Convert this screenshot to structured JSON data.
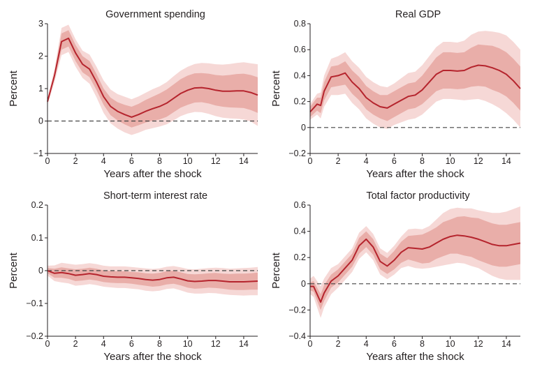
{
  "colors": {
    "line": "#b5242d",
    "inner_band": "#e9aea9",
    "outer_band": "#f6d8d6",
    "axis": "#231f20",
    "zero_line": "#444444"
  },
  "chart_data": [
    {
      "type": "line",
      "title": "Government spending",
      "xlabel": "Years after the shock",
      "ylabel": "Percent",
      "xlim": [
        0,
        15
      ],
      "ylim": [
        -1,
        3
      ],
      "xticks": [
        0,
        2,
        4,
        6,
        8,
        10,
        12,
        14
      ],
      "yticks": [
        -1,
        0,
        1,
        2,
        3
      ],
      "ytick_labels": [
        "−1",
        "0",
        "1",
        "2",
        "3"
      ],
      "x": [
        0,
        0.5,
        1,
        1.5,
        2,
        2.5,
        3,
        3.5,
        4,
        4.5,
        5,
        5.5,
        6,
        6.5,
        7,
        7.5,
        8,
        8.5,
        9,
        9.5,
        10,
        10.5,
        11,
        11.5,
        12,
        12.5,
        13,
        13.5,
        14,
        14.5,
        15
      ],
      "mean": [
        0.6,
        1.4,
        2.45,
        2.55,
        2.1,
        1.75,
        1.6,
        1.2,
        0.75,
        0.45,
        0.3,
        0.2,
        0.12,
        0.2,
        0.3,
        0.38,
        0.45,
        0.55,
        0.7,
        0.85,
        0.95,
        1.02,
        1.03,
        1.0,
        0.95,
        0.92,
        0.92,
        0.93,
        0.93,
        0.88,
        0.8
      ],
      "inner_halfwidth": [
        0.05,
        0.1,
        0.25,
        0.25,
        0.25,
        0.25,
        0.25,
        0.25,
        0.25,
        0.27,
        0.28,
        0.3,
        0.32,
        0.33,
        0.35,
        0.37,
        0.4,
        0.42,
        0.43,
        0.44,
        0.45,
        0.45,
        0.45,
        0.46,
        0.47,
        0.48,
        0.5,
        0.52,
        0.53,
        0.54,
        0.55
      ],
      "outer_halfwidth": [
        0.1,
        0.2,
        0.42,
        0.42,
        0.42,
        0.42,
        0.45,
        0.47,
        0.5,
        0.52,
        0.53,
        0.55,
        0.55,
        0.56,
        0.57,
        0.6,
        0.62,
        0.65,
        0.68,
        0.7,
        0.72,
        0.74,
        0.76,
        0.78,
        0.8,
        0.82,
        0.84,
        0.86,
        0.88,
        0.9,
        0.95
      ]
    },
    {
      "type": "line",
      "title": "Real GDP",
      "xlabel": "Years after the shock",
      "ylabel": "Percent",
      "xlim": [
        0,
        15
      ],
      "ylim": [
        -0.2,
        0.8
      ],
      "xticks": [
        0,
        2,
        4,
        6,
        8,
        10,
        12,
        14
      ],
      "yticks": [
        -0.2,
        0,
        0.2,
        0.4,
        0.6,
        0.8
      ],
      "ytick_labels": [
        "−0.2",
        "0",
        "0.2",
        "0.4",
        "0.6",
        "0.8"
      ],
      "x": [
        0,
        0.5,
        0.75,
        1,
        1.5,
        2,
        2.5,
        3,
        3.5,
        4,
        4.5,
        5,
        5.5,
        6,
        6.5,
        7,
        7.5,
        8,
        8.5,
        9,
        9.5,
        10,
        10.5,
        11,
        11.5,
        12,
        12.5,
        13,
        13.5,
        14,
        14.5,
        15
      ],
      "mean": [
        0.12,
        0.18,
        0.17,
        0.28,
        0.39,
        0.4,
        0.42,
        0.35,
        0.3,
        0.23,
        0.19,
        0.16,
        0.15,
        0.18,
        0.21,
        0.24,
        0.25,
        0.29,
        0.35,
        0.41,
        0.44,
        0.44,
        0.435,
        0.44,
        0.465,
        0.48,
        0.475,
        0.46,
        0.44,
        0.41,
        0.36,
        0.3
      ],
      "inner_halfwidth": [
        0.04,
        0.05,
        0.06,
        0.07,
        0.08,
        0.08,
        0.09,
        0.09,
        0.09,
        0.09,
        0.09,
        0.09,
        0.1,
        0.1,
        0.1,
        0.1,
        0.1,
        0.11,
        0.12,
        0.13,
        0.14,
        0.14,
        0.14,
        0.14,
        0.15,
        0.16,
        0.16,
        0.17,
        0.17,
        0.17,
        0.17,
        0.17
      ],
      "outer_halfwidth": [
        0.06,
        0.08,
        0.1,
        0.12,
        0.14,
        0.15,
        0.16,
        0.16,
        0.16,
        0.16,
        0.16,
        0.16,
        0.16,
        0.16,
        0.17,
        0.18,
        0.18,
        0.19,
        0.2,
        0.21,
        0.22,
        0.22,
        0.22,
        0.23,
        0.25,
        0.26,
        0.27,
        0.28,
        0.29,
        0.3,
        0.3,
        0.3
      ]
    },
    {
      "type": "line",
      "title": "Short-term interest rate",
      "xlabel": "Years after the shock",
      "ylabel": "Percent",
      "xlim": [
        0,
        15
      ],
      "ylim": [
        -0.2,
        0.2
      ],
      "xticks": [
        0,
        2,
        4,
        6,
        8,
        10,
        12,
        14
      ],
      "yticks": [
        -0.2,
        -0.1,
        0,
        0.1,
        0.2
      ],
      "ytick_labels": [
        "−0.2",
        "−0.1",
        "0",
        "0.1",
        "0.2"
      ],
      "x": [
        0,
        0.5,
        1,
        1.5,
        2,
        2.5,
        3,
        3.5,
        4,
        4.5,
        5,
        5.5,
        6,
        6.5,
        7,
        7.5,
        8,
        8.5,
        9,
        9.5,
        10,
        10.5,
        11,
        11.5,
        12,
        12.5,
        13,
        13.5,
        14,
        14.5,
        15
      ],
      "mean": [
        0,
        -0.008,
        -0.006,
        -0.009,
        -0.014,
        -0.012,
        -0.009,
        -0.012,
        -0.017,
        -0.019,
        -0.02,
        -0.02,
        -0.022,
        -0.024,
        -0.027,
        -0.029,
        -0.027,
        -0.022,
        -0.02,
        -0.025,
        -0.031,
        -0.033,
        -0.032,
        -0.03,
        -0.03,
        -0.032,
        -0.034,
        -0.034,
        -0.034,
        -0.033,
        -0.032
      ],
      "inner_halfwidth": [
        0.008,
        0.014,
        0.016,
        0.016,
        0.018,
        0.018,
        0.018,
        0.018,
        0.018,
        0.018,
        0.018,
        0.018,
        0.018,
        0.019,
        0.019,
        0.02,
        0.02,
        0.02,
        0.02,
        0.02,
        0.021,
        0.022,
        0.022,
        0.022,
        0.023,
        0.023,
        0.024,
        0.025,
        0.025,
        0.025,
        0.026
      ],
      "outer_halfwidth": [
        0.015,
        0.024,
        0.03,
        0.03,
        0.032,
        0.032,
        0.032,
        0.032,
        0.032,
        0.032,
        0.033,
        0.033,
        0.033,
        0.033,
        0.034,
        0.034,
        0.034,
        0.034,
        0.034,
        0.035,
        0.036,
        0.037,
        0.038,
        0.038,
        0.039,
        0.04,
        0.04,
        0.041,
        0.042,
        0.042,
        0.043
      ]
    },
    {
      "type": "line",
      "title": "Total factor productivity",
      "xlabel": "Years after the shock",
      "ylabel": "Percent",
      "xlim": [
        0,
        15
      ],
      "ylim": [
        -0.4,
        0.6
      ],
      "xticks": [
        0,
        2,
        4,
        6,
        8,
        10,
        12,
        14
      ],
      "yticks": [
        -0.4,
        -0.2,
        0,
        0.2,
        0.4,
        0.6
      ],
      "ytick_labels": [
        "−0.4",
        "−0.2",
        "0",
        "0.2",
        "0.4",
        "0.6"
      ],
      "x": [
        0,
        0.25,
        0.75,
        1,
        1.5,
        2,
        2.5,
        3,
        3.5,
        4,
        4.5,
        5,
        5.5,
        6,
        6.5,
        7,
        7.5,
        8,
        8.5,
        9,
        9.5,
        10,
        10.5,
        11,
        11.5,
        12,
        12.5,
        13,
        13.5,
        14,
        14.5,
        15
      ],
      "mean": [
        -0.02,
        -0.02,
        -0.14,
        -0.07,
        0.02,
        0.06,
        0.12,
        0.18,
        0.29,
        0.34,
        0.28,
        0.17,
        0.135,
        0.18,
        0.24,
        0.275,
        0.27,
        0.265,
        0.28,
        0.31,
        0.34,
        0.36,
        0.37,
        0.365,
        0.355,
        0.34,
        0.32,
        0.3,
        0.29,
        0.29,
        0.3,
        0.31
      ],
      "inner_halfwidth": [
        0.03,
        0.04,
        0.06,
        0.06,
        0.05,
        0.05,
        0.05,
        0.05,
        0.06,
        0.06,
        0.06,
        0.06,
        0.06,
        0.07,
        0.08,
        0.09,
        0.1,
        0.11,
        0.12,
        0.12,
        0.13,
        0.13,
        0.14,
        0.15,
        0.15,
        0.16,
        0.16,
        0.16,
        0.16,
        0.16,
        0.16,
        0.16
      ],
      "outer_halfwidth": [
        0.06,
        0.08,
        0.12,
        0.11,
        0.1,
        0.09,
        0.09,
        0.09,
        0.1,
        0.1,
        0.1,
        0.1,
        0.1,
        0.11,
        0.12,
        0.14,
        0.15,
        0.15,
        0.16,
        0.18,
        0.2,
        0.21,
        0.21,
        0.21,
        0.22,
        0.22,
        0.23,
        0.24,
        0.25,
        0.26,
        0.27,
        0.28
      ]
    }
  ]
}
